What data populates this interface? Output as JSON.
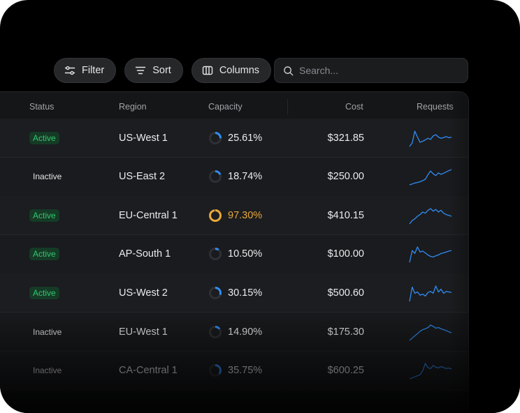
{
  "toolbar": {
    "filter_label": "Filter",
    "sort_label": "Sort",
    "columns_label": "Columns",
    "search_placeholder": "Search..."
  },
  "columns": [
    "Status",
    "Region",
    "Capacity",
    "Cost",
    "Requests"
  ],
  "rows": [
    {
      "status": "Active",
      "region": "US-West 1",
      "capacity": "25.61%",
      "capacity_value": 25.61,
      "cost": "$321.85",
      "requests": [
        20,
        35,
        85,
        60,
        38,
        42,
        48,
        55,
        50,
        65,
        70,
        60,
        55,
        58,
        62,
        57,
        60
      ]
    },
    {
      "status": "Inactive",
      "region": "US-East 2",
      "capacity": "18.74%",
      "capacity_value": 18.74,
      "cost": "$250.00",
      "requests": [
        5,
        10,
        15,
        18,
        22,
        28,
        35,
        60,
        80,
        65,
        55,
        70,
        62,
        68,
        75,
        82,
        88
      ]
    },
    {
      "status": "Active",
      "region": "EU-Central 1",
      "capacity": "97.30%",
      "capacity_value": 97.3,
      "cost": "$410.15",
      "requests": [
        30,
        38,
        42,
        48,
        52,
        58,
        55,
        62,
        66,
        60,
        64,
        58,
        62,
        55,
        52,
        50,
        48
      ]
    },
    {
      "status": "Active",
      "region": "AP-South 1",
      "capacity": "10.50%",
      "capacity_value": 10.5,
      "cost": "$100.00",
      "requests": [
        20,
        60,
        50,
        72,
        55,
        58,
        52,
        45,
        40,
        38,
        42,
        45,
        50,
        52,
        55,
        58,
        60
      ]
    },
    {
      "status": "Active",
      "region": "US-West 2",
      "capacity": "30.15%",
      "capacity_value": 30.15,
      "cost": "$500.60",
      "requests": [
        25,
        78,
        55,
        60,
        48,
        52,
        45,
        58,
        62,
        55,
        82,
        60,
        70,
        55,
        62,
        60,
        58
      ]
    },
    {
      "status": "Inactive",
      "region": "EU-West 1",
      "capacity": "14.90%",
      "capacity_value": 14.9,
      "cost": "$175.30",
      "requests": [
        20,
        28,
        35,
        42,
        50,
        55,
        58,
        62,
        70,
        66,
        60,
        62,
        58,
        55,
        52,
        48,
        45
      ]
    },
    {
      "status": "Inactive",
      "region": "CA-Central 1",
      "capacity": "35.75%",
      "capacity_value": 35.75,
      "cost": "$600.25",
      "requests": [
        5,
        10,
        15,
        20,
        25,
        45,
        80,
        60,
        55,
        70,
        62,
        58,
        65,
        60,
        55,
        58,
        52
      ]
    }
  ],
  "colors": {
    "active_badge_bg": "#153b26",
    "active_badge_text": "#35c46f",
    "ring_accent": "#2f8df5",
    "ring_warning": "#e8a838",
    "sparkline": "#2f8df5"
  },
  "icons": {
    "filter": "sliders-icon",
    "sort": "sort-lines-icon",
    "columns": "columns-icon",
    "search": "search-icon"
  }
}
